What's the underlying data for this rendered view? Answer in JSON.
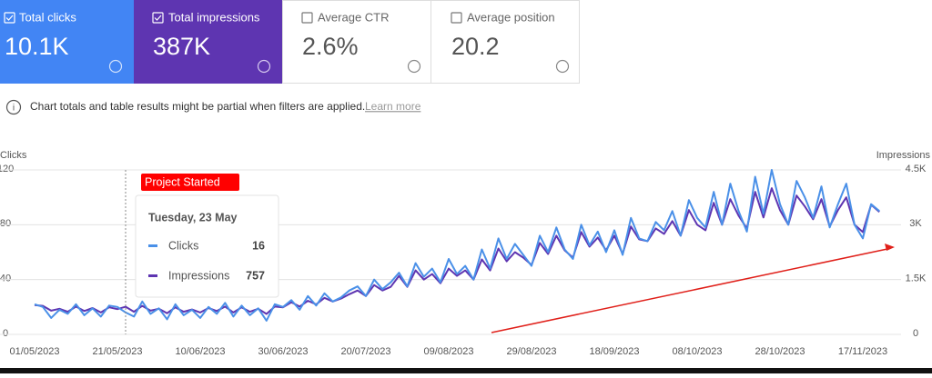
{
  "cards": [
    {
      "label": "Total clicks",
      "value": "10.1K"
    },
    {
      "label": "Total impressions",
      "value": "387K"
    },
    {
      "label": "Average CTR",
      "value": "2.6%"
    },
    {
      "label": "Average position",
      "value": "20.2"
    }
  ],
  "notice": {
    "text": "Chart totals and table results might be partial when filters are applied.",
    "link": "Learn more"
  },
  "chart_data": {
    "type": "line",
    "y_label": "Clicks",
    "y2_label": "Impressions",
    "categories": [
      "01/05/2023",
      null,
      null,
      null,
      null,
      null,
      null,
      null,
      null,
      null,
      "21/05/2023",
      null,
      null,
      null,
      null,
      null,
      null,
      null,
      null,
      null,
      "10/06/2023",
      null,
      null,
      null,
      null,
      null,
      null,
      null,
      null,
      null,
      "30/06/2023",
      null,
      null,
      null,
      null,
      null,
      null,
      null,
      null,
      null,
      "20/07/2023",
      null,
      null,
      null,
      null,
      null,
      null,
      null,
      null,
      null,
      "09/08/2023",
      null,
      null,
      null,
      null,
      null,
      null,
      null,
      null,
      null,
      "29/08/2023",
      null,
      null,
      null,
      null,
      null,
      null,
      null,
      null,
      null,
      "18/09/2023",
      null,
      null,
      null,
      null,
      null,
      null,
      null,
      null,
      null,
      "08/10/2023",
      null,
      null,
      null,
      null,
      null,
      null,
      null,
      null,
      null,
      "28/10/2023",
      null,
      null,
      null,
      null,
      null,
      null,
      null,
      null,
      null,
      "17/11/2023",
      null,
      null
    ],
    "series": [
      {
        "name": "Clicks",
        "color": "#4a90e8",
        "values": [
          22,
          20,
          12,
          18,
          15,
          22,
          14,
          19,
          13,
          21,
          20,
          16,
          13,
          24,
          15,
          19,
          11,
          22,
          14,
          18,
          12,
          20,
          15,
          23,
          13,
          21,
          14,
          19,
          10,
          22,
          20,
          25,
          18,
          28,
          21,
          30,
          24,
          27,
          32,
          35,
          28,
          40,
          33,
          38,
          45,
          35,
          52,
          42,
          48,
          38,
          55,
          44,
          50,
          40,
          62,
          48,
          70,
          55,
          66,
          58,
          50,
          72,
          60,
          78,
          62,
          55,
          80,
          65,
          75,
          60,
          76,
          58,
          85,
          70,
          68,
          82,
          76,
          90,
          72,
          98,
          85,
          78,
          104,
          80,
          110,
          90,
          75,
          115,
          88,
          120,
          95,
          80,
          112,
          100,
          85,
          108,
          78,
          95,
          110,
          80,
          70,
          95,
          90
        ]
      },
      {
        "name": "Impressions",
        "color": "#5e35b1",
        "axis": "y2",
        "values": [
          800,
          780,
          650,
          700,
          620,
          760,
          640,
          720,
          600,
          740,
          690,
          757,
          620,
          780,
          650,
          700,
          580,
          740,
          620,
          680,
          600,
          720,
          640,
          760,
          600,
          740,
          620,
          700,
          560,
          760,
          740,
          880,
          760,
          920,
          820,
          1000,
          900,
          980,
          1100,
          1200,
          1050,
          1350,
          1200,
          1300,
          1600,
          1300,
          1750,
          1500,
          1650,
          1400,
          1800,
          1600,
          1750,
          1500,
          2050,
          1750,
          2350,
          2000,
          2250,
          2100,
          1900,
          2500,
          2200,
          2700,
          2300,
          2100,
          2800,
          2400,
          2650,
          2300,
          2700,
          2200,
          2950,
          2600,
          2550,
          2900,
          2750,
          3100,
          2700,
          3400,
          3000,
          2850,
          3600,
          3000,
          3700,
          3250,
          2900,
          3900,
          3200,
          4000,
          3400,
          3000,
          3800,
          3500,
          3150,
          3700,
          2950,
          3400,
          3750,
          3000,
          2800,
          3550,
          3350
        ]
      }
    ],
    "ylim": [
      0,
      120
    ],
    "yticks": [
      0,
      40,
      80,
      120
    ],
    "y2lim": [
      0,
      4500
    ],
    "y2ticks": [
      0,
      {
        "value": 1500,
        "label": "1.5K"
      },
      {
        "value": 3000,
        "label": "3K"
      },
      {
        "value": 4500,
        "label": "4.5K"
      }
    ],
    "grid": true,
    "annotation": "Project Started",
    "tooltip": {
      "title": "Tuesday, 23 May",
      "rows": [
        {
          "name": "Clicks",
          "value": "16"
        },
        {
          "name": "Impressions",
          "value": "757"
        }
      ]
    }
  }
}
